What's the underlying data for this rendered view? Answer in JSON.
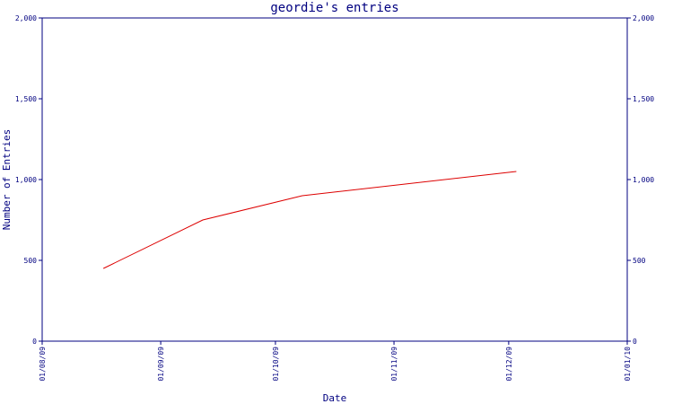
{
  "chart_data": {
    "type": "line",
    "title": "geordie's entries",
    "xlabel": "Date",
    "ylabel": "Number of Entries",
    "x_ticks": [
      "01/08/09",
      "01/09/09",
      "01/10/09",
      "01/11/09",
      "01/12/09",
      "01/01/10"
    ],
    "xlim": [
      "2009-08-01",
      "2010-01-01"
    ],
    "ylim": [
      0,
      2000
    ],
    "y_ticks": [
      0,
      500,
      1000,
      1500,
      2000
    ],
    "y_tick_labels": [
      "0",
      "500",
      "1,000",
      "1,500",
      "2,000"
    ],
    "secondary_y_axis": true,
    "grid": false,
    "colors": {
      "axis": "#000080",
      "series": "#dd0000"
    },
    "series": [
      {
        "x": [
          "2009-08-17",
          "2009-09-12",
          "2009-10-08",
          "2009-12-03"
        ],
        "values": [
          450,
          750,
          900,
          1050
        ]
      }
    ]
  }
}
